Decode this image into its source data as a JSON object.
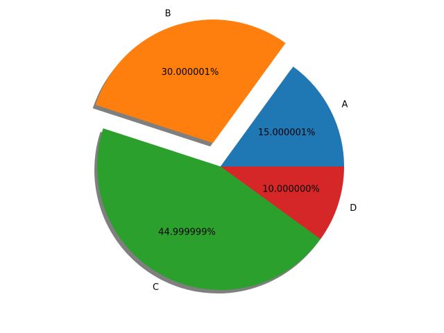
{
  "chart_data": {
    "type": "pie",
    "categories": [
      "A",
      "B",
      "C",
      "D"
    ],
    "values": [
      15.000001,
      30.000001,
      44.999999,
      10.0
    ],
    "value_labels": [
      "15.000001%",
      "30.000001%",
      "44.999999%",
      "10.000000%"
    ],
    "colors": [
      "#1f77b4",
      "#ff7f0e",
      "#2ca02c",
      "#d62728"
    ],
    "explode": [
      0,
      0.2,
      0,
      0
    ],
    "shadow": true,
    "startangle": 0
  }
}
